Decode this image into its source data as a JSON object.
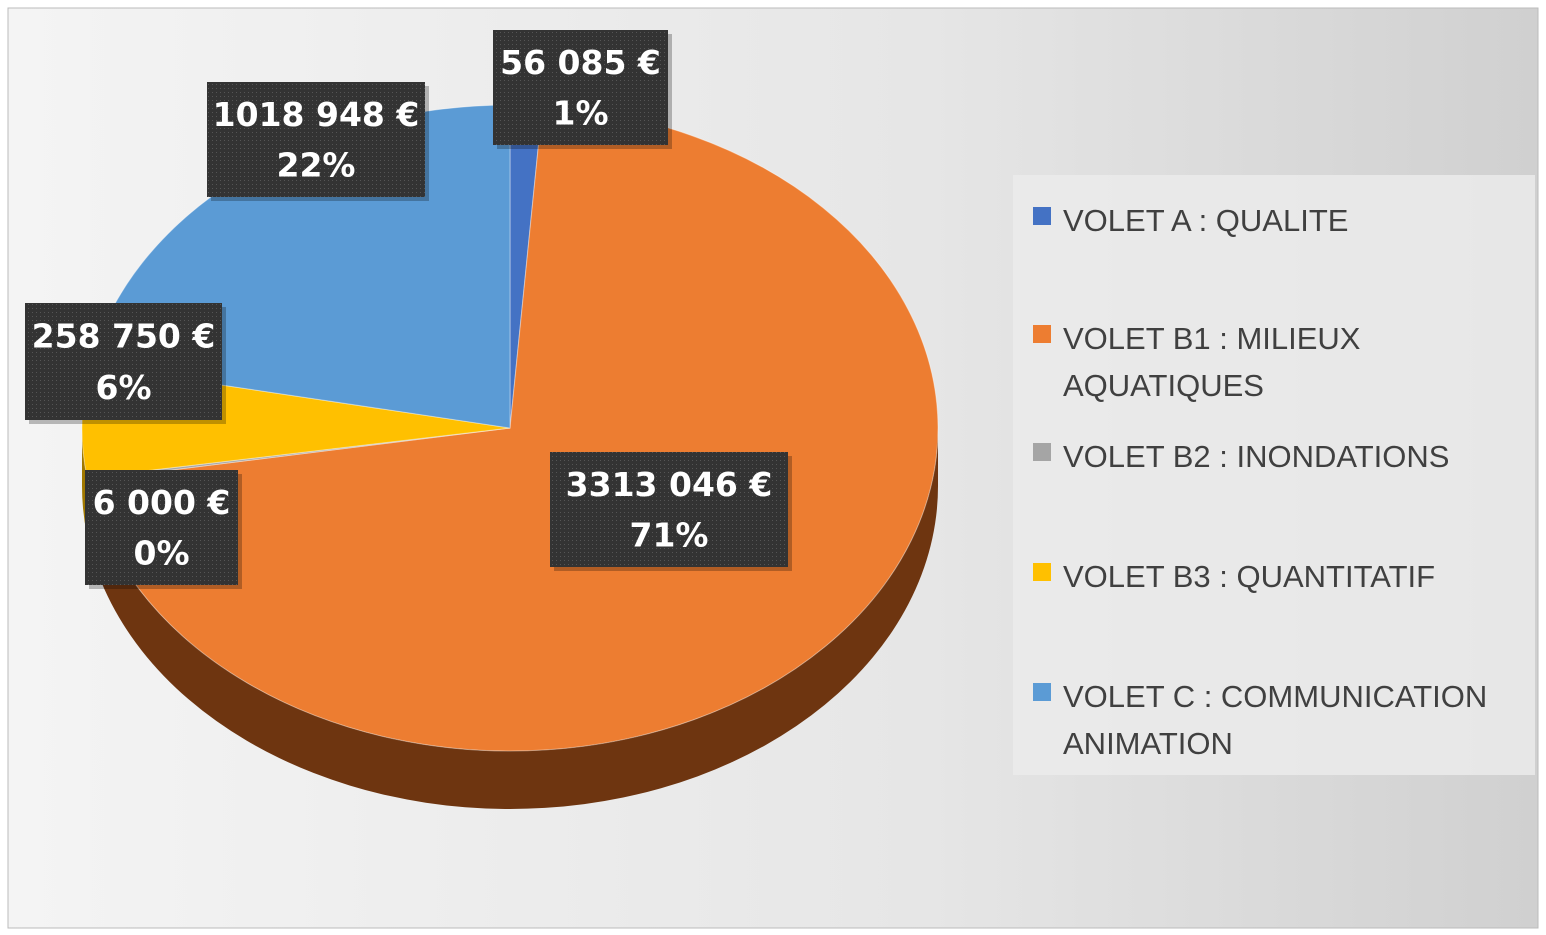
{
  "chart_data": {
    "type": "pie",
    "categories": [
      "VOLET A : QUALITE",
      "VOLET B1 : MILIEUX AQUATIQUES",
      "VOLET B2 : INONDATIONS",
      "VOLET B3 : QUANTITATIF",
      "VOLET C : COMMUNICATION ANIMATION"
    ],
    "values": [
      56085,
      3313046,
      6000,
      258750,
      1018948
    ],
    "value_labels": [
      "56 085 €",
      "3313 046 €",
      "6 000 €",
      "258 750 €",
      "1018 948 €"
    ],
    "percent_labels": [
      "1%",
      "71%",
      "0%",
      "6%",
      "22%"
    ],
    "colors": [
      "#4472c4",
      "#ed7d31",
      "#a5a5a5",
      "#ffc000",
      "#5b9bd5"
    ],
    "side_colors": [
      "#2a4a85",
      "#6e3510",
      "#666666",
      "#a07800",
      "#35628a"
    ],
    "legend": "right"
  }
}
